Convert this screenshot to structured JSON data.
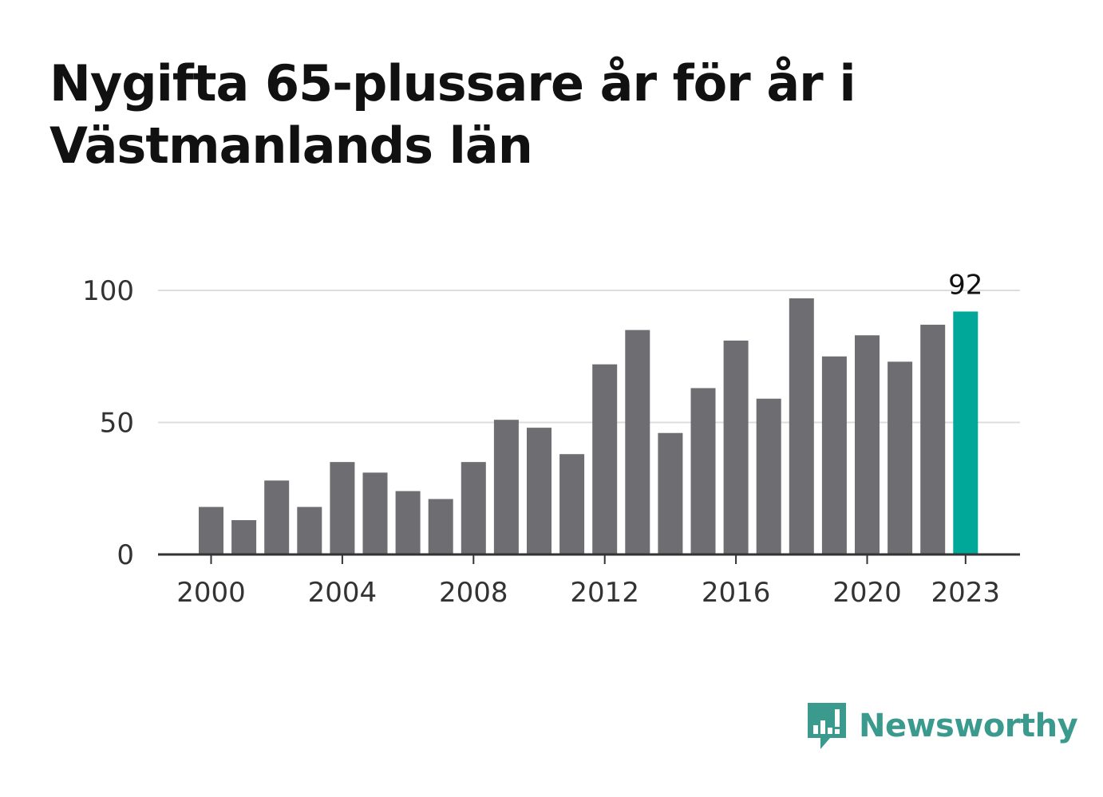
{
  "title": "Nygifta 65-plussare år för år i Västmanlands län",
  "brand": {
    "name": "Newsworthy",
    "icon": "newsworthy-logo-icon",
    "color": "#3b9a8e"
  },
  "chart_data": {
    "type": "bar",
    "title": "Nygifta 65-plussare år för år i Västmanlands län",
    "xlabel": "",
    "ylabel": "",
    "categories": [
      "2000",
      "2001",
      "2002",
      "2003",
      "2004",
      "2005",
      "2006",
      "2007",
      "2008",
      "2009",
      "2010",
      "2011",
      "2012",
      "2013",
      "2014",
      "2015",
      "2016",
      "2017",
      "2018",
      "2019",
      "2020",
      "2021",
      "2022",
      "2023"
    ],
    "values": [
      18,
      13,
      28,
      18,
      35,
      31,
      24,
      21,
      35,
      51,
      48,
      38,
      72,
      85,
      46,
      63,
      81,
      59,
      97,
      75,
      83,
      73,
      87,
      92
    ],
    "ylim": [
      0,
      100
    ],
    "yticks": [
      "0",
      "50",
      "100"
    ],
    "xticks": [
      "2000",
      "2004",
      "2008",
      "2012",
      "2016",
      "2020",
      "2023"
    ],
    "highlight": {
      "category": "2023",
      "label": "92"
    },
    "grid": true,
    "legend": "none",
    "colors": {
      "bar": "#6e6d72",
      "highlight": "#00a89a",
      "grid": "#dddddd",
      "axis": "#333333"
    }
  }
}
